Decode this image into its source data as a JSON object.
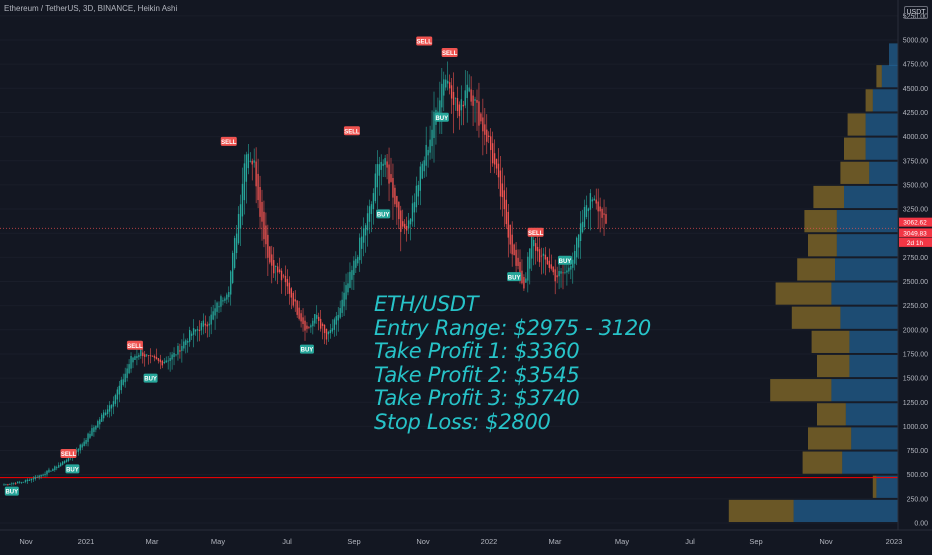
{
  "header": {
    "title": "Ethereum / TetherUS, 3D, BINANCE, Heikin Ashi",
    "currency": "USDT"
  },
  "annotation": {
    "lines": [
      "ETH/USDT",
      "Entry Range: $2975 - 3120",
      "Take Profit 1: $3360",
      "Take Profit 2: $3545",
      "Take Profit 3: $3740",
      "Stop Loss: $2800"
    ]
  },
  "price_tags": [
    {
      "label": "3062.62",
      "value": 3062.62,
      "color": "#f23645"
    },
    {
      "label": "3049.83",
      "value": 3049.83,
      "color": "#f23645"
    },
    {
      "label": "2d 1h",
      "value": 2915,
      "color": "#f23645"
    }
  ],
  "colors": {
    "up": "#26a69a",
    "down": "#ef5350",
    "sell_signal": "#ef5350",
    "buy_signal": "#26a69a",
    "hline": "#ff0000",
    "vp_up": "#2a8fd6",
    "vp_down": "#d4a72c"
  },
  "chart_data": {
    "type": "candlestick",
    "title": "Ethereum / TetherUS, 3D, BINANCE, Heikin Ashi",
    "xlabel": "",
    "ylabel": "",
    "y_axis_position": "right",
    "ylim": [
      0,
      5250
    ],
    "y_ticks": [
      "5250.00",
      "5000.00",
      "4750.00",
      "4500.00",
      "4250.00",
      "4000.00",
      "3750.00",
      "3500.00",
      "3250.00",
      "3000.00",
      "2750.00",
      "2500.00",
      "2250.00",
      "2000.00",
      "1750.00",
      "1500.00",
      "1250.00",
      "1000.00",
      "750.00",
      "500.00",
      "250.00",
      "0.00"
    ],
    "x_ticks": [
      "Nov",
      "2021",
      "Mar",
      "May",
      "Jul",
      "Sep",
      "Nov",
      "2022",
      "Mar",
      "May",
      "Jul",
      "Sep",
      "Nov",
      "2023"
    ],
    "horizontal_lines": [
      {
        "value": 470,
        "style": "solid",
        "color": "#ff0000"
      },
      {
        "value": 3050,
        "style": "dotted",
        "color": "#ef5350"
      }
    ],
    "price_anchors": [
      [
        0,
        400
      ],
      [
        10,
        430
      ],
      [
        18,
        490
      ],
      [
        25,
        560
      ],
      [
        30,
        630
      ],
      [
        35,
        720
      ],
      [
        40,
        820
      ],
      [
        48,
        1050
      ],
      [
        55,
        1250
      ],
      [
        60,
        1450
      ],
      [
        65,
        1700
      ],
      [
        70,
        1780
      ],
      [
        74,
        1700
      ],
      [
        80,
        1660
      ],
      [
        87,
        1740
      ],
      [
        95,
        1950
      ],
      [
        105,
        2100
      ],
      [
        115,
        2450
      ],
      [
        120,
        3200
      ],
      [
        124,
        3900
      ],
      [
        128,
        3700
      ],
      [
        132,
        3100
      ],
      [
        136,
        2700
      ],
      [
        140,
        2600
      ],
      [
        146,
        2400
      ],
      [
        150,
        2200
      ],
      [
        155,
        2000
      ],
      [
        160,
        2150
      ],
      [
        165,
        1900
      ],
      [
        170,
        2100
      ],
      [
        178,
        2600
      ],
      [
        185,
        3100
      ],
      [
        188,
        3300
      ],
      [
        192,
        3800
      ],
      [
        196,
        3650
      ],
      [
        200,
        3350
      ],
      [
        204,
        3000
      ],
      [
        208,
        3200
      ],
      [
        214,
        3700
      ],
      [
        218,
        4000
      ],
      [
        222,
        4350
      ],
      [
        225,
        4650
      ],
      [
        229,
        4500
      ],
      [
        233,
        4200
      ],
      [
        237,
        4600
      ],
      [
        240,
        4400
      ],
      [
        244,
        4150
      ],
      [
        248,
        3950
      ],
      [
        252,
        3600
      ],
      [
        256,
        3200
      ],
      [
        262,
        2650
      ],
      [
        266,
        2450
      ],
      [
        270,
        2950
      ],
      [
        274,
        2750
      ],
      [
        278,
        2700
      ],
      [
        282,
        2550
      ],
      [
        288,
        2600
      ],
      [
        294,
        2950
      ],
      [
        298,
        3300
      ],
      [
        302,
        3400
      ],
      [
        305,
        3250
      ],
      [
        308,
        3050
      ]
    ],
    "signals": [
      {
        "type": "BUY",
        "bar": 4,
        "value": 330
      },
      {
        "type": "SELL",
        "bar": 33,
        "value": 720
      },
      {
        "type": "BUY",
        "bar": 35,
        "value": 560
      },
      {
        "type": "SELL",
        "bar": 67,
        "value": 1840
      },
      {
        "type": "BUY",
        "bar": 75,
        "value": 1500
      },
      {
        "type": "SELL",
        "bar": 115,
        "value": 3950
      },
      {
        "type": "BUY",
        "bar": 155,
        "value": 1800
      },
      {
        "type": "SELL",
        "bar": 178,
        "value": 4060
      },
      {
        "type": "BUY",
        "bar": 194,
        "value": 3200
      },
      {
        "type": "SELL",
        "bar": 215,
        "value": 4990
      },
      {
        "type": "SELL",
        "bar": 228,
        "value": 4870
      },
      {
        "type": "BUY",
        "bar": 224,
        "value": 4200
      },
      {
        "type": "BUY",
        "bar": 261,
        "value": 2550
      },
      {
        "type": "SELL",
        "bar": 272,
        "value": 3010
      },
      {
        "type": "BUY",
        "bar": 287,
        "value": 2720
      }
    ],
    "volume_profile": [
      {
        "price": 4850,
        "up": 0.05,
        "down": 0.0
      },
      {
        "price": 4625,
        "up": 0.09,
        "down": 0.03
      },
      {
        "price": 4375,
        "up": 0.14,
        "down": 0.04
      },
      {
        "price": 4125,
        "up": 0.18,
        "down": 0.1
      },
      {
        "price": 3875,
        "up": 0.18,
        "down": 0.12
      },
      {
        "price": 3625,
        "up": 0.16,
        "down": 0.16
      },
      {
        "price": 3375,
        "up": 0.3,
        "down": 0.17
      },
      {
        "price": 3125,
        "up": 0.34,
        "down": 0.18
      },
      {
        "price": 2875,
        "up": 0.34,
        "down": 0.16
      },
      {
        "price": 2625,
        "up": 0.35,
        "down": 0.21
      },
      {
        "price": 2375,
        "up": 0.37,
        "down": 0.31
      },
      {
        "price": 2125,
        "up": 0.32,
        "down": 0.27
      },
      {
        "price": 1875,
        "up": 0.27,
        "down": 0.21
      },
      {
        "price": 1625,
        "up": 0.27,
        "down": 0.18
      },
      {
        "price": 1375,
        "up": 0.37,
        "down": 0.34
      },
      {
        "price": 1125,
        "up": 0.29,
        "down": 0.16
      },
      {
        "price": 875,
        "up": 0.26,
        "down": 0.24
      },
      {
        "price": 625,
        "up": 0.31,
        "down": 0.22
      },
      {
        "price": 375,
        "up": 0.12,
        "down": 0.02
      },
      {
        "price": 125,
        "up": 0.58,
        "down": 0.36
      }
    ]
  }
}
